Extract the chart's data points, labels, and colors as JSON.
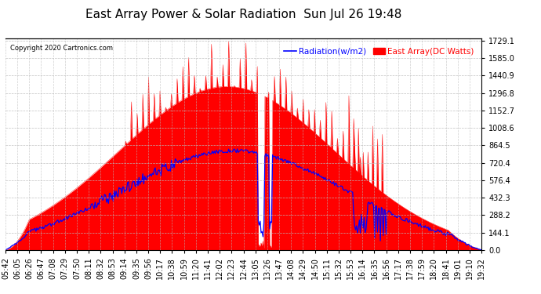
{
  "title": "East Array Power & Solar Radiation  Sun Jul 26 19:48",
  "copyright": "Copyright 2020 Cartronics.com",
  "legend_radiation": "Radiation(w/m2)",
  "legend_east_array": "East Array(DC Watts)",
  "ylabel_right_values": [
    1729.1,
    1585.0,
    1440.9,
    1296.8,
    1152.7,
    1008.6,
    864.5,
    720.4,
    576.4,
    432.3,
    288.2,
    144.1,
    0.0
  ],
  "ymax": 1729.1,
  "ymin": 0.0,
  "background_color": "#ffffff",
  "plot_bg_color": "#ffffff",
  "radiation_color": "#0000ff",
  "array_color": "#ff0000",
  "array_fill_color": "#ff0000",
  "grid_color": "#bbbbbb",
  "title_fontsize": 11,
  "tick_fontsize": 7,
  "x_labels": [
    "05:42",
    "06:05",
    "06:26",
    "06:47",
    "07:08",
    "07:29",
    "07:50",
    "08:11",
    "08:32",
    "08:53",
    "09:14",
    "09:35",
    "09:56",
    "10:17",
    "10:38",
    "10:59",
    "11:20",
    "11:41",
    "12:02",
    "12:23",
    "12:44",
    "13:05",
    "13:26",
    "13:47",
    "14:08",
    "14:29",
    "14:50",
    "15:11",
    "15:32",
    "15:53",
    "16:14",
    "16:35",
    "16:56",
    "17:17",
    "17:38",
    "17:59",
    "18:20",
    "18:41",
    "19:01",
    "19:10",
    "19:32"
  ]
}
